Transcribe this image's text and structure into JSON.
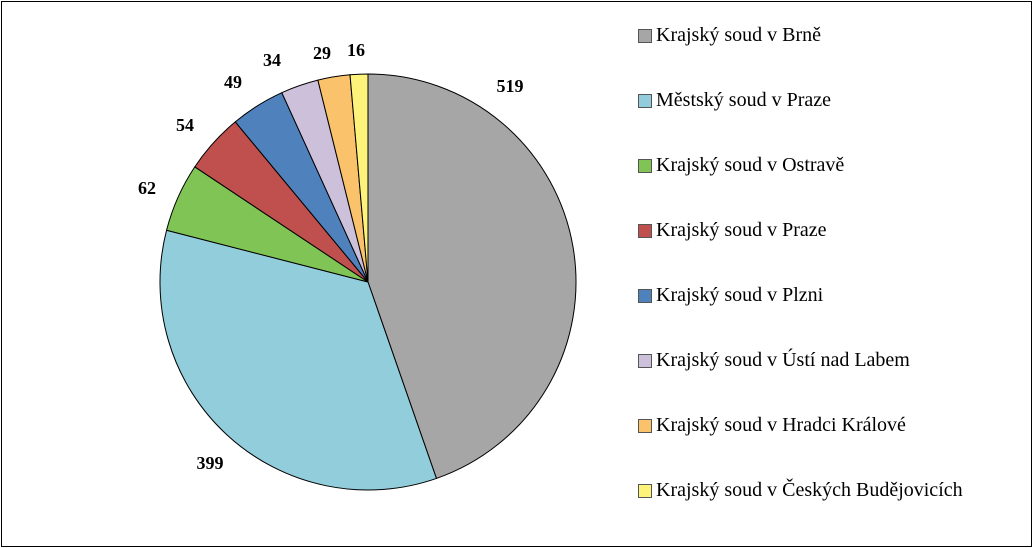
{
  "chart_data": {
    "type": "pie",
    "categories": [
      "Krajský soud v Brně",
      "Městský soud v Praze",
      "Krajský soud v Ostravě",
      "Krajský soud v Praze",
      "Krajský soud v Plzni",
      "Krajský soud v Ústí nad Labem",
      "Krajský soud v Hradci Králové",
      "Krajský soud v Českých Budějovicích"
    ],
    "values": [
      519,
      399,
      62,
      54,
      49,
      34,
      29,
      16
    ],
    "colors": [
      "#a6a6a6",
      "#92cddc",
      "#7fc454",
      "#c0504d",
      "#4f81bd",
      "#ccc0da",
      "#fac26a",
      "#fdf27a"
    ],
    "legend": "right"
  }
}
